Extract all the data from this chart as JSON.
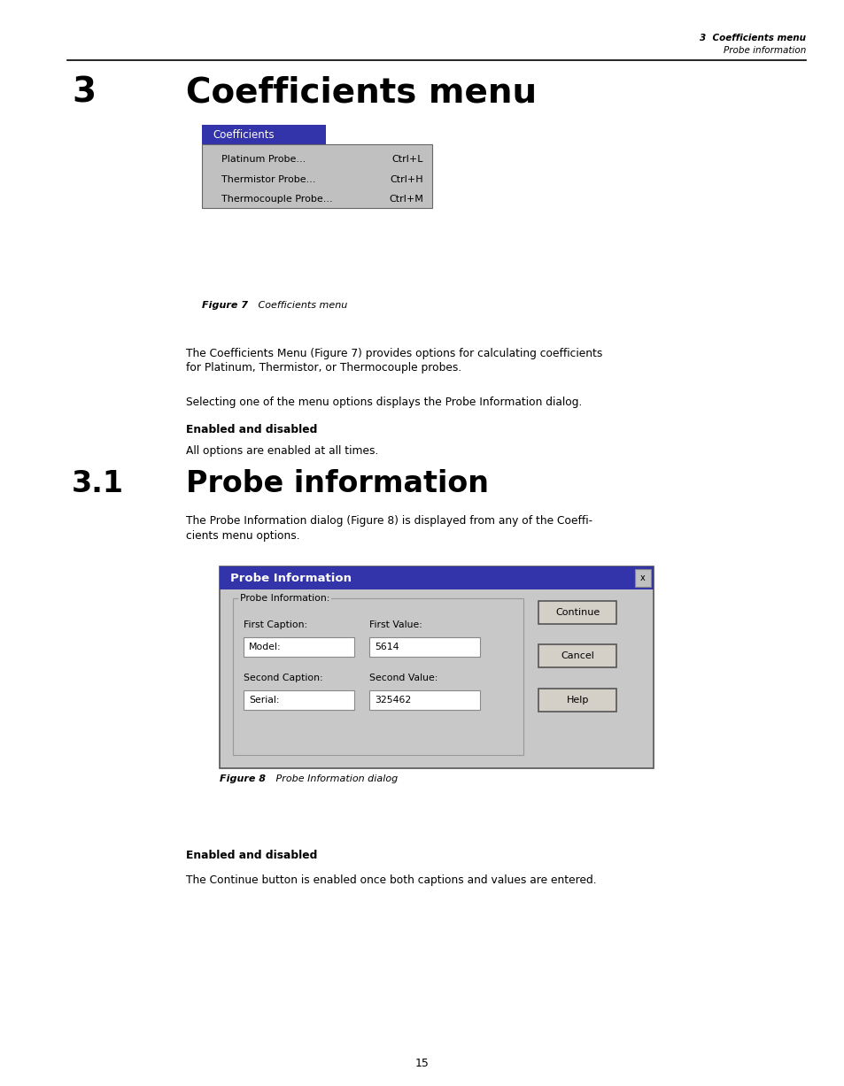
{
  "page_bg": "#ffffff",
  "header_right_bold": "3  Coefficients menu",
  "header_right_italic": "Probe information",
  "chapter_number": "3",
  "chapter_title": "Coefficients menu",
  "section_number": "3.1",
  "section_title": "Probe information",
  "fig7_caption_bold": "Figure 7",
  "fig7_caption_italic": "   Coefficients menu",
  "fig8_caption_bold": "Figure 8",
  "fig8_caption_italic": "   Probe Information dialog",
  "menu_title": "Coefficients",
  "menu_items": [
    "Platinum Probe...",
    "Thermistor Probe...",
    "Thermocouple Probe..."
  ],
  "menu_shortcuts": [
    "Ctrl+L",
    "Ctrl+H",
    "Ctrl+M"
  ],
  "menu_bg": "#c0c0c0",
  "menu_header_bg": "#3333aa",
  "menu_header_fg": "#ffffff",
  "para1_line1": "The Coefficients Menu (Figure 7) provides options for calculating coefficients",
  "para1_line2": "for Platinum, Thermistor, or Thermocouple probes.",
  "para2": "Selecting one of the menu options displays the Probe Information dialog.",
  "bold1": "Enabled and disabled",
  "para3": "All options are enabled at all times.",
  "para4_line1": "The Probe Information dialog (Figure 8) is displayed from any of the Coeffi-",
  "para4_line2": "cients menu options.",
  "bold2": "Enabled and disabled",
  "para5": "The Continue button is enabled once both captions and values are entered.",
  "page_number": "15",
  "dialog_title_bg": "#3333aa",
  "dialog_title_fg": "#ffffff",
  "dialog_title": "Probe Information",
  "dialog_bg": "#c8c8c8",
  "dialog_groupbox": "Probe Information:",
  "field1_label": "First Caption:",
  "field1_value_label": "First Value:",
  "field1_text": "Model:",
  "field1_value": "5614",
  "field2_label": "Second Caption:",
  "field2_value_label": "Second Value:",
  "field2_text": "Serial:",
  "field2_value": "325462",
  "btn1": "Continue",
  "btn2": "Cancel",
  "btn3": "Help"
}
